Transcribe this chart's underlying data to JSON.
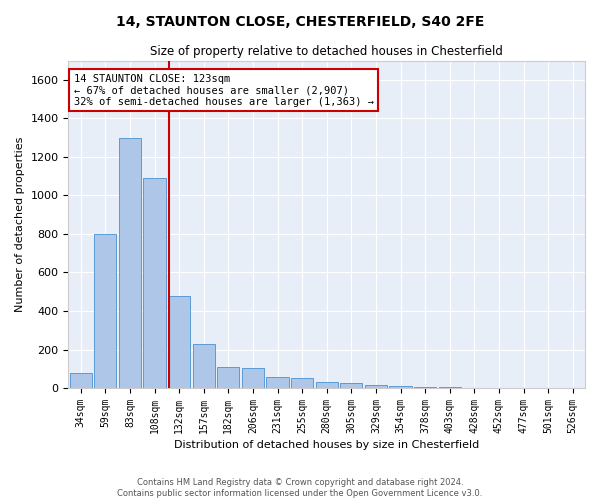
{
  "title1": "14, STAUNTON CLOSE, CHESTERFIELD, S40 2FE",
  "title2": "Size of property relative to detached houses in Chesterfield",
  "xlabel": "Distribution of detached houses by size in Chesterfield",
  "ylabel": "Number of detached properties",
  "bar_labels": [
    "34sqm",
    "59sqm",
    "83sqm",
    "108sqm",
    "132sqm",
    "157sqm",
    "182sqm",
    "206sqm",
    "231sqm",
    "255sqm",
    "280sqm",
    "305sqm",
    "329sqm",
    "354sqm",
    "378sqm",
    "403sqm",
    "428sqm",
    "452sqm",
    "477sqm",
    "501sqm",
    "526sqm"
  ],
  "bar_values": [
    80,
    800,
    1300,
    1090,
    480,
    230,
    110,
    105,
    55,
    50,
    30,
    25,
    15,
    10,
    8,
    5,
    3,
    2,
    1,
    1,
    0
  ],
  "bar_color": "#aec6e8",
  "bar_edge_color": "#5b9bd5",
  "annotation_text_line1": "14 STAUNTON CLOSE: 123sqm",
  "annotation_text_line2": "← 67% of detached houses are smaller (2,907)",
  "annotation_text_line3": "32% of semi-detached houses are larger (1,363) →",
  "annotation_box_color": "#ffffff",
  "annotation_box_edge": "#cc0000",
  "vertical_line_color": "#cc0000",
  "ylim": [
    0,
    1700
  ],
  "yticks": [
    0,
    200,
    400,
    600,
    800,
    1000,
    1200,
    1400,
    1600
  ],
  "background_color": "#e8eef8",
  "footer_line1": "Contains HM Land Registry data © Crown copyright and database right 2024.",
  "footer_line2": "Contains public sector information licensed under the Open Government Licence v3.0."
}
